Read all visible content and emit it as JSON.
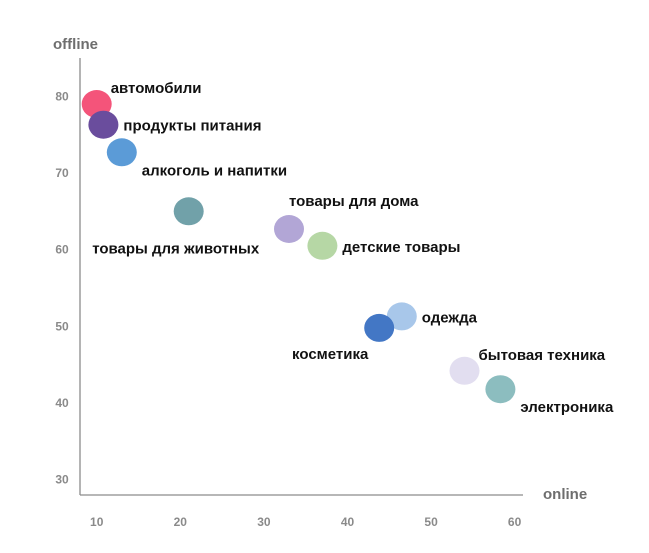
{
  "chart_data": {
    "type": "scatter",
    "title": "",
    "xlabel": "online",
    "ylabel": "offline",
    "xlim": [
      8,
      61
    ],
    "ylim": [
      28,
      85
    ],
    "x_ticks": [
      10,
      20,
      30,
      40,
      50,
      60
    ],
    "y_ticks": [
      30,
      40,
      50,
      60,
      70,
      80
    ],
    "grid": false,
    "points": [
      {
        "label": "автомобили",
        "x": 10,
        "y": 79,
        "color": "#f4547a",
        "label_pos": "upper-right"
      },
      {
        "label": "продукты питания",
        "x": 10.8,
        "y": 76.3,
        "color": "#6a4d9d",
        "label_pos": "right"
      },
      {
        "label": "алкоголь и напитки",
        "x": 13,
        "y": 72.7,
        "color": "#5b9bd7",
        "label_pos": "lower-right"
      },
      {
        "label": "товары для животных",
        "x": 21,
        "y": 65,
        "color": "#71a1a9",
        "label_pos": "below"
      },
      {
        "label": "товары для дома",
        "x": 33,
        "y": 62.7,
        "color": "#b2a6d6",
        "label_pos": "above-right"
      },
      {
        "label": "детские товары",
        "x": 37,
        "y": 60.5,
        "color": "#b6d7a5",
        "label_pos": "right"
      },
      {
        "label": "одежда",
        "x": 46.5,
        "y": 51.3,
        "color": "#a8c7ea",
        "label_pos": "right"
      },
      {
        "label": "косметика",
        "x": 43.8,
        "y": 49.8,
        "color": "#4377c5",
        "label_pos": "below-left"
      },
      {
        "label": "бытовая техника",
        "x": 54,
        "y": 44.2,
        "color": "#e2def0",
        "label_pos": "upper-right"
      },
      {
        "label": "электроника",
        "x": 58.3,
        "y": 41.8,
        "color": "#8cbdbf",
        "label_pos": "lower-right"
      }
    ]
  }
}
